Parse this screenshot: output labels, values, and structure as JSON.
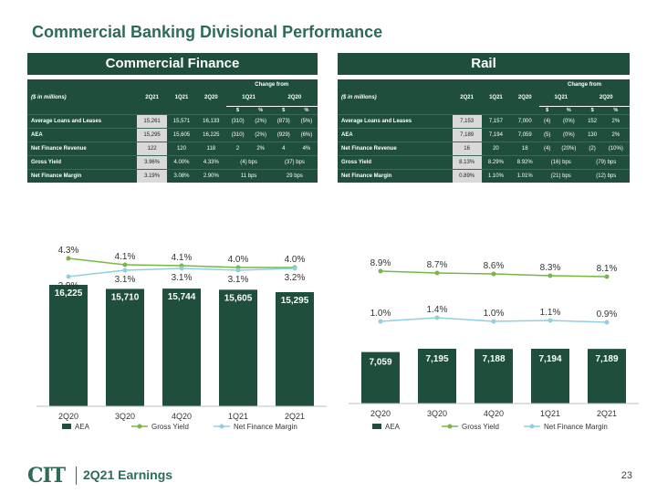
{
  "slide_title": "Commercial Banking Divisional Performance",
  "footer": {
    "logo": "CIT",
    "text": "2Q21 Earnings",
    "page": "23"
  },
  "panels": [
    {
      "title": "Commercial Finance",
      "units": "($ in millions)",
      "columns": [
        "2Q21",
        "1Q21",
        "2Q20"
      ],
      "change_header": "Change from",
      "change_periods": [
        "1Q21",
        "2Q20"
      ],
      "change_sub": [
        "$",
        "%",
        "$",
        "%"
      ],
      "rows": [
        {
          "label": "Average Loans and Leases",
          "values": [
            "15,261",
            "15,571",
            "16,133"
          ],
          "changes": [
            "(310)",
            "(2%)",
            "(873)",
            "(5%)"
          ]
        },
        {
          "label": "AEA",
          "values": [
            "15,295",
            "15,605",
            "16,225"
          ],
          "changes": [
            "(310)",
            "(2%)",
            "(929)",
            "(6%)"
          ]
        },
        {
          "label": "Net Finance Revenue",
          "values": [
            "122",
            "120",
            "118"
          ],
          "changes": [
            "2",
            "2%",
            "4",
            "4%"
          ]
        },
        {
          "label": "Gross Yield",
          "values": [
            "3.96%",
            "4.00%",
            "4.33%"
          ],
          "changes_bps": [
            "(4) bps",
            "(37) bps"
          ]
        },
        {
          "label": "Net Finance Margin",
          "values": [
            "3.19%",
            "3.08%",
            "2.90%"
          ],
          "changes_bps": [
            "11 bps",
            "29 bps"
          ]
        }
      ]
    },
    {
      "title": "Rail",
      "units": "($ in millions)",
      "columns": [
        "2Q21",
        "1Q21",
        "2Q20"
      ],
      "change_header": "Change from",
      "change_periods": [
        "1Q21",
        "2Q20"
      ],
      "change_sub": [
        "$",
        "%",
        "$",
        "%"
      ],
      "rows": [
        {
          "label": "Average Loans and Leases",
          "values": [
            "7,153",
            "7,157",
            "7,000"
          ],
          "changes": [
            "(4)",
            "(0%)",
            "152",
            "2%"
          ]
        },
        {
          "label": "AEA",
          "values": [
            "7,189",
            "7,194",
            "7,059"
          ],
          "changes": [
            "(5)",
            "(0%)",
            "130",
            "2%"
          ]
        },
        {
          "label": "Net Finance Revenue",
          "values": [
            "16",
            "20",
            "18"
          ],
          "changes": [
            "(4)",
            "(20%)",
            "(2)",
            "(10%)"
          ]
        },
        {
          "label": "Gross Yield",
          "values": [
            "8.13%",
            "8.29%",
            "8.92%"
          ],
          "changes_bps": [
            "(16) bps",
            "(79) bps"
          ]
        },
        {
          "label": "Net Finance Margin",
          "values": [
            "0.89%",
            "1.10%",
            "1.01%"
          ],
          "changes_bps": [
            "(21) bps",
            "(12) bps"
          ]
        }
      ]
    }
  ],
  "colors": {
    "bar": "#1f4e3d",
    "gross_yield": "#77b843",
    "nfm": "#8fd0e0",
    "title": "#2e6b57"
  },
  "chart_data": [
    {
      "type": "bar",
      "categories": [
        "2Q20",
        "3Q20",
        "4Q20",
        "1Q21",
        "2Q21"
      ],
      "series": [
        {
          "name": "AEA",
          "type": "bar",
          "values": [
            16225,
            15710,
            15744,
            15605,
            15295
          ],
          "labels": [
            "16,225",
            "15,710",
            "15,744",
            "15,605",
            "15,295"
          ]
        },
        {
          "name": "Gross Yield",
          "type": "line",
          "values": [
            4.3,
            4.1,
            4.1,
            4.0,
            4.0
          ],
          "labels": [
            "4.3%",
            "4.1%",
            "4.1%",
            "4.0%",
            "4.0%"
          ]
        },
        {
          "name": "Net Finance Margin",
          "type": "line",
          "values": [
            2.9,
            3.1,
            3.1,
            3.1,
            3.2
          ],
          "labels": [
            "2.9%",
            "3.1%",
            "3.1%",
            "3.1%",
            "3.2%"
          ]
        }
      ],
      "legend": "bottom"
    },
    {
      "type": "bar",
      "categories": [
        "2Q20",
        "3Q20",
        "4Q20",
        "1Q21",
        "2Q21"
      ],
      "series": [
        {
          "name": "AEA",
          "type": "bar",
          "values": [
            7059,
            7195,
            7188,
            7194,
            7189
          ],
          "labels": [
            "7,059",
            "7,195",
            "7,188",
            "7,194",
            "7,189"
          ]
        },
        {
          "name": "Gross Yield",
          "type": "line",
          "values": [
            8.9,
            8.7,
            8.6,
            8.3,
            8.1
          ],
          "labels": [
            "8.9%",
            "8.7%",
            "8.6%",
            "8.3%",
            "8.1%"
          ]
        },
        {
          "name": "Net Finance Margin",
          "type": "line",
          "values": [
            1.0,
            1.4,
            1.0,
            1.1,
            0.9
          ],
          "labels": [
            "1.0%",
            "1.4%",
            "1.0%",
            "1.1%",
            "0.9%"
          ]
        }
      ],
      "legend": "bottom"
    }
  ]
}
